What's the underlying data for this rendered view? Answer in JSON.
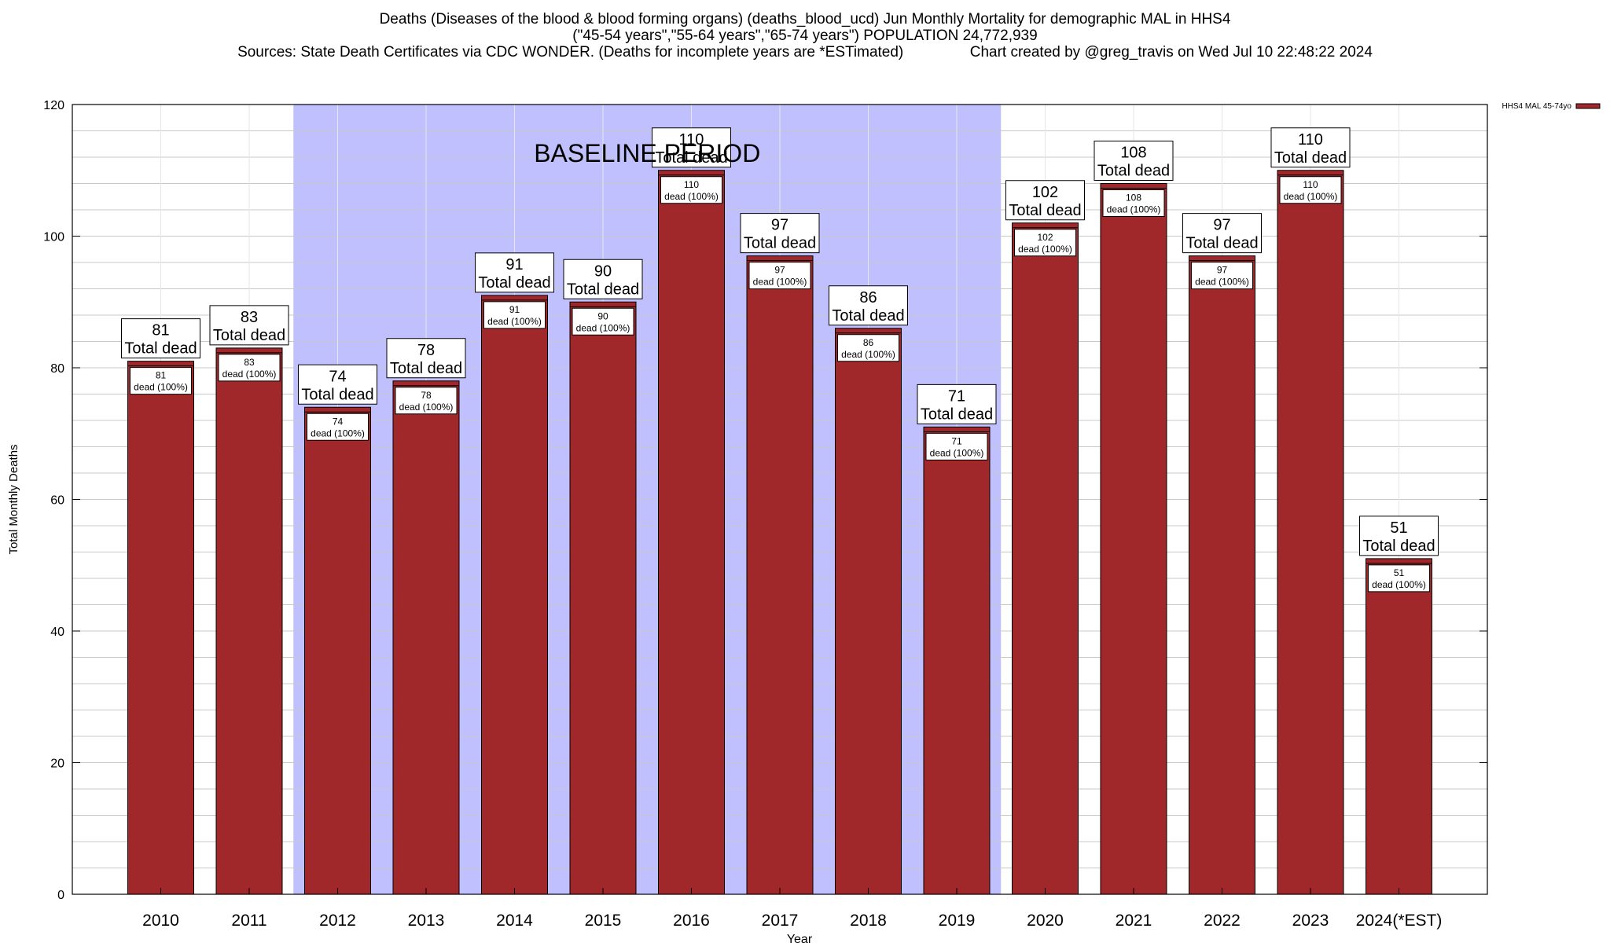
{
  "chart_data": {
    "type": "bar",
    "title": "Deaths (Diseases of the blood & blood forming organs) (deaths_blood_ucd) Jun Monthly Mortality for demographic MAL in HHS4",
    "subtitle": "(\"45-54 years\",\"55-64 years\",\"65-74 years\") POPULATION 24,772,939",
    "sources_line": "Sources: State Death Certificates via CDC WONDER. (Deaths for incomplete years are *ESTimated)                Chart created by @greg_travis on Wed Jul 10 22:48:22 2024",
    "xlabel": "Year",
    "ylabel": "Total Monthly Deaths",
    "ylim": [
      0,
      120
    ],
    "yticks": [
      0,
      20,
      40,
      60,
      80,
      100,
      120
    ],
    "categories": [
      "2010",
      "2011",
      "2012",
      "2013",
      "2014",
      "2015",
      "2016",
      "2017",
      "2018",
      "2019",
      "2020",
      "2021",
      "2022",
      "2023",
      "2024(*EST)"
    ],
    "series": [
      {
        "name": "HHS4 MAL 45-74yo",
        "color": "#a0282a",
        "values": [
          81,
          83,
          74,
          78,
          91,
          90,
          110,
          97,
          86,
          71,
          102,
          108,
          97,
          110,
          51
        ]
      }
    ],
    "top_label_suffix": "Total dead",
    "inner_label_suffix": "dead (100%)",
    "baseline_label": "BASELINE PERIOD",
    "baseline_range": [
      "2012",
      "2019"
    ],
    "baseline_color": "#c0c0ff",
    "grid": true,
    "legend_position": "top-right"
  }
}
